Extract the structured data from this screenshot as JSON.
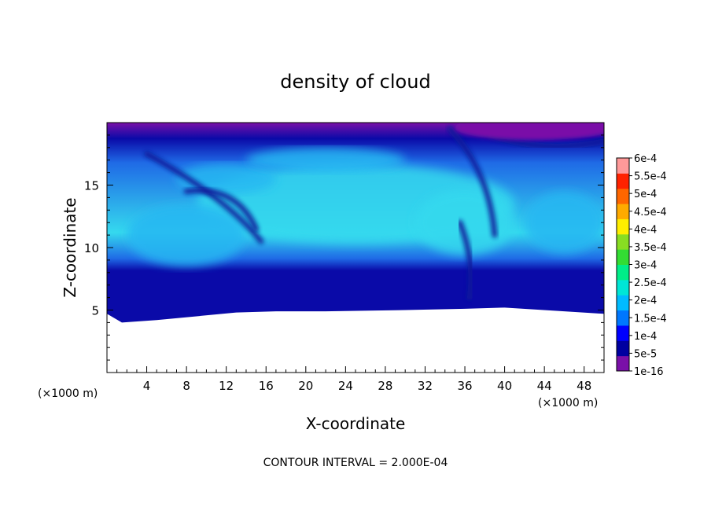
{
  "chart_data": {
    "type": "heatmap",
    "title": "density of cloud",
    "xlabel": "X-coordinate",
    "ylabel": "Z-coordinate",
    "x_unit": "(×1000 m)",
    "x_unit_right": "(×1000 m)",
    "xlim": [
      0,
      50
    ],
    "ylim": [
      0,
      20
    ],
    "x_ticks": [
      4,
      8,
      12,
      16,
      20,
      24,
      28,
      32,
      36,
      40,
      44,
      48
    ],
    "y_ticks": [
      5,
      10,
      15
    ],
    "footer": "CONTOUR INTERVAL = 2.000E-04",
    "colorbar": {
      "labels": [
        "6e-4",
        "5.5e-4",
        "5e-4",
        "4.5e-4",
        "4e-4",
        "3.5e-4",
        "3e-4",
        "2.5e-4",
        "2e-4",
        "1.5e-4",
        "1e-4",
        "5e-5",
        "1e-16"
      ],
      "colors": [
        "#7a10a8",
        "#0000a0",
        "#0000ff",
        "#0077ff",
        "#00bbff",
        "#00e6d6",
        "#00ee88",
        "#33dd33",
        "#88dd22",
        "#ffee00",
        "#ffaa00",
        "#ff6600",
        "#ff2200",
        "#ff9999"
      ]
    },
    "cloud_base": [
      [
        0,
        4.7
      ],
      [
        1.5,
        4.0
      ],
      [
        5,
        4.2
      ],
      [
        9,
        4.5
      ],
      [
        13,
        4.8
      ],
      [
        17,
        4.9
      ],
      [
        22,
        4.9
      ],
      [
        30,
        5.0
      ],
      [
        36,
        5.1
      ],
      [
        40,
        5.2
      ],
      [
        46,
        4.9
      ],
      [
        50,
        4.7
      ]
    ],
    "field_colors": {
      "edge": "#0a0aa8",
      "outer": "#1f6ae6",
      "inner": "#28b8f2",
      "core": "#35d9ee",
      "low": "#7a10a8",
      "streak": "#0a1a9a"
    }
  }
}
